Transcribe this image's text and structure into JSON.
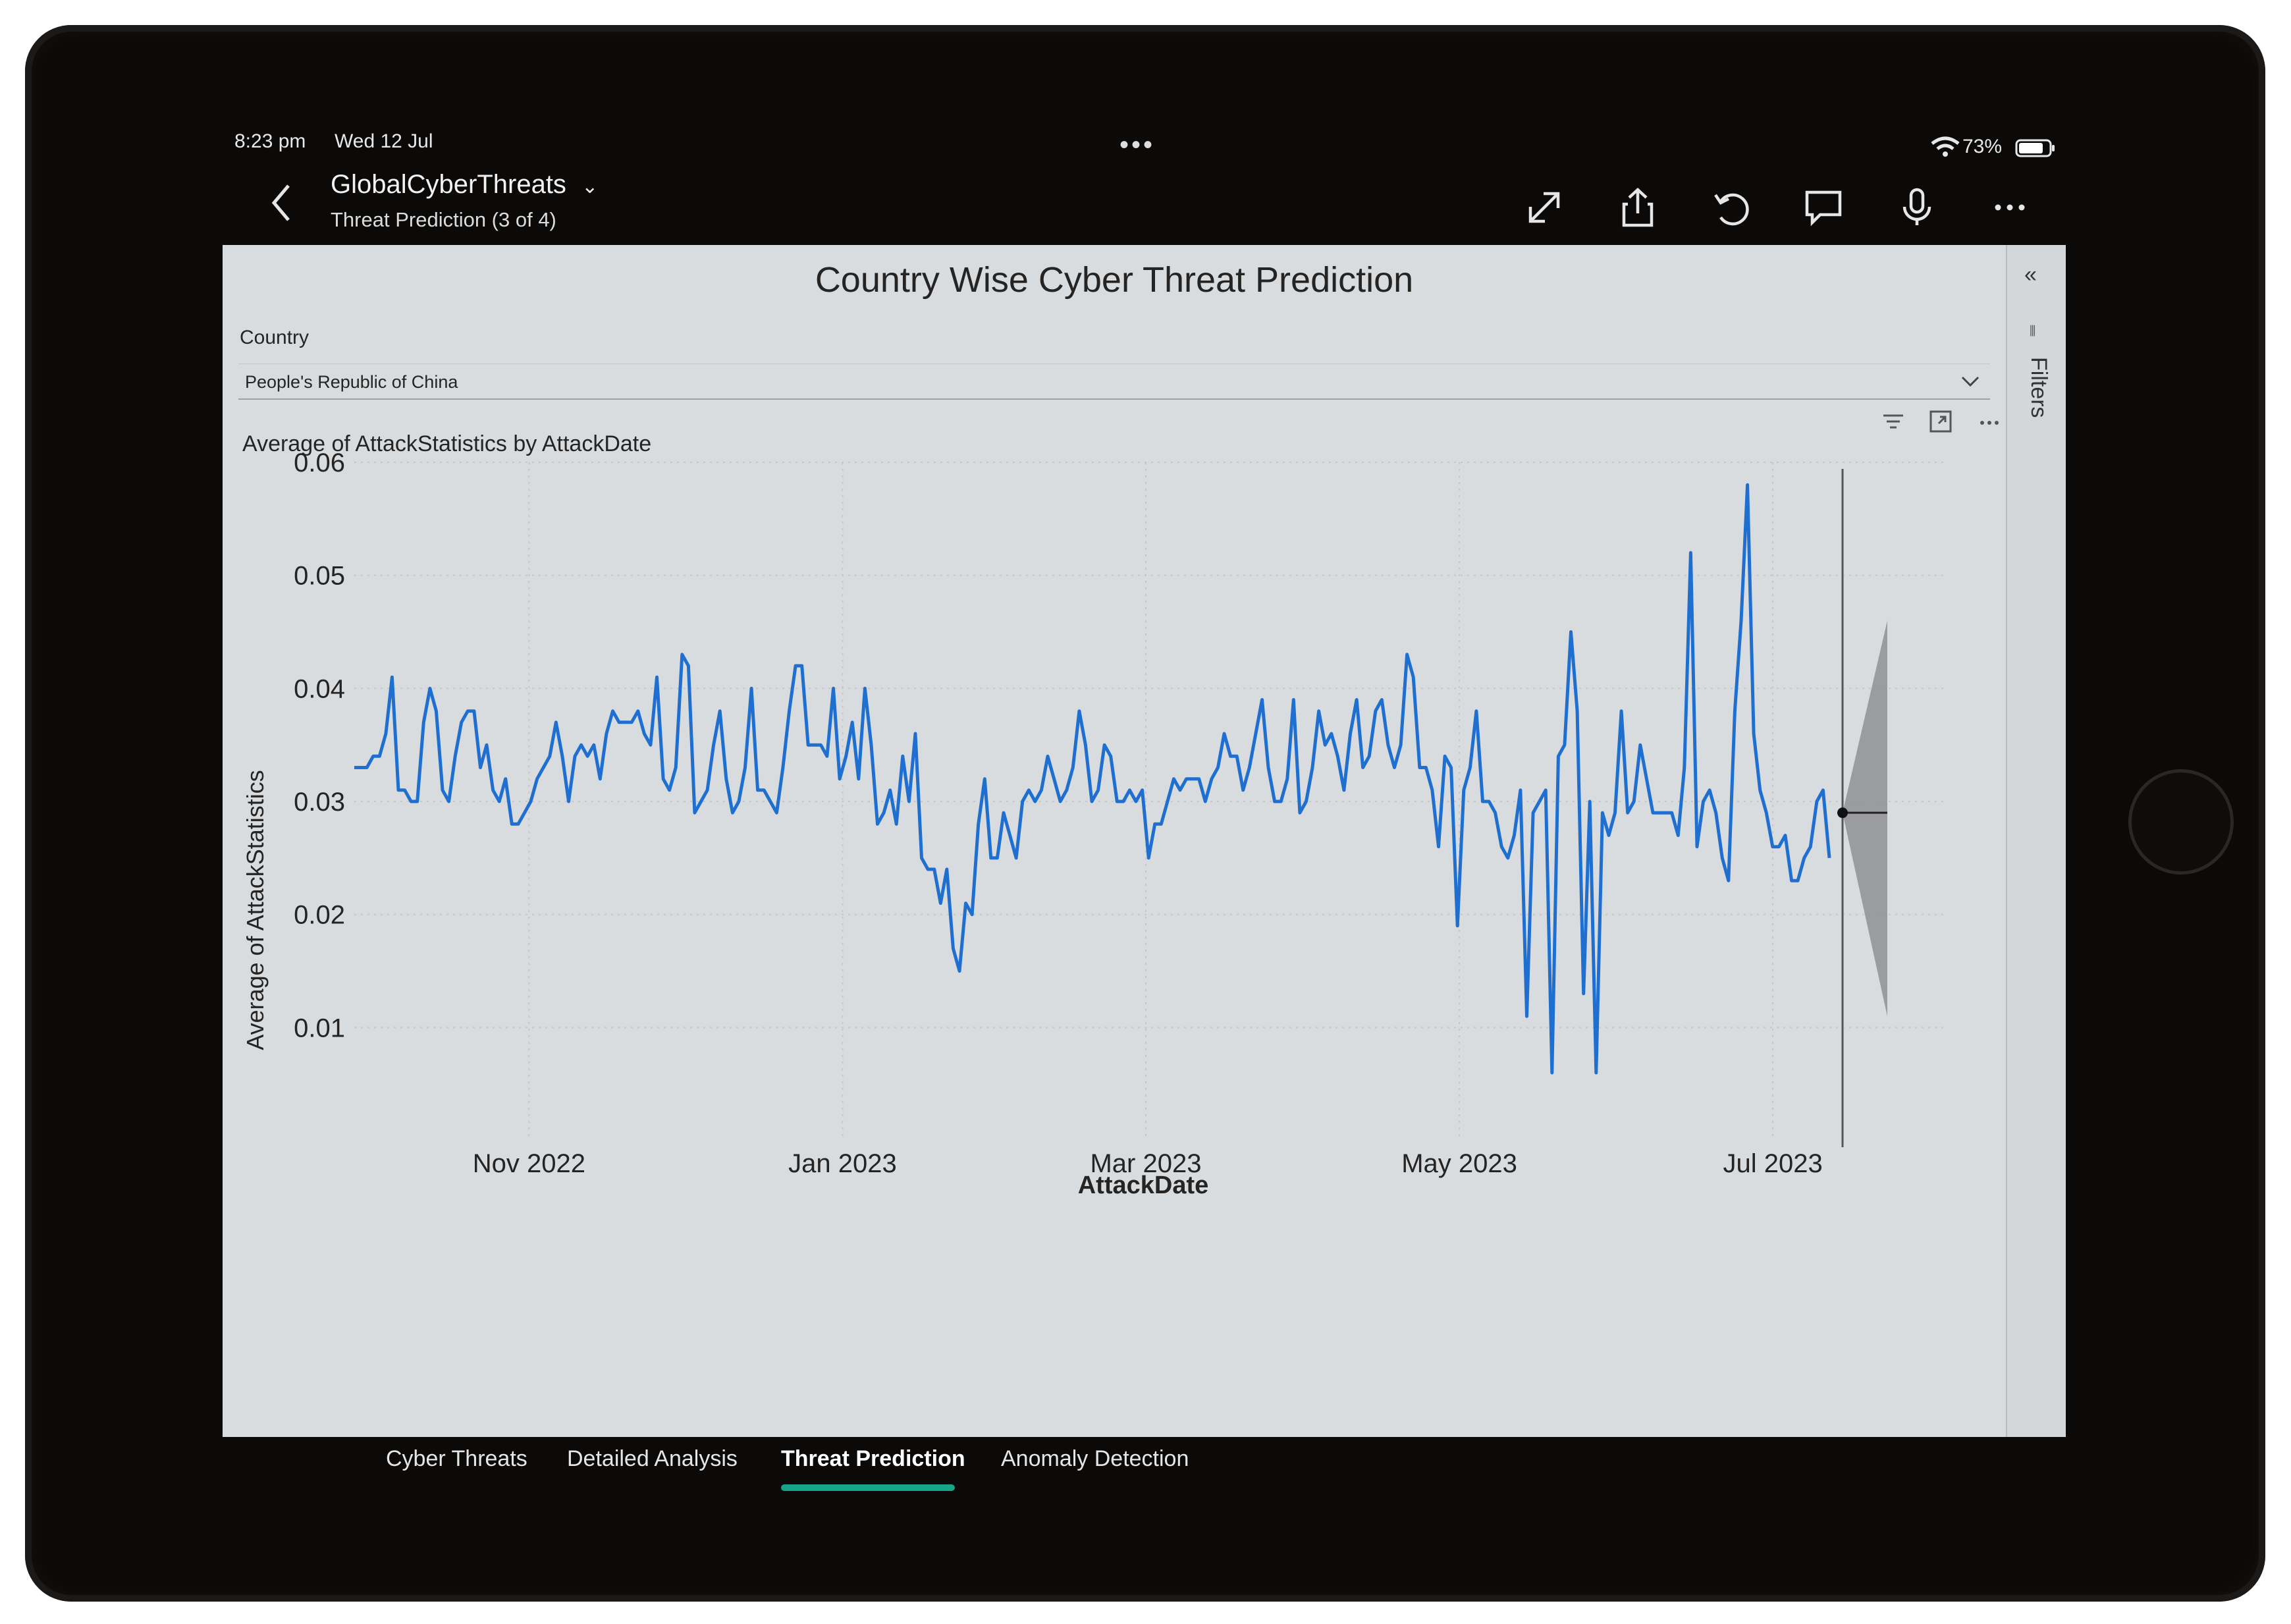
{
  "status_bar": {
    "time": "8:23 pm",
    "date": "Wed 12 Jul",
    "battery": "73%"
  },
  "header": {
    "title": "GlobalCyberThreats",
    "subtitle": "Threat Prediction (3 of 4)",
    "tools": [
      "expand-icon",
      "share-icon",
      "undo-icon",
      "comment-icon",
      "microphone-icon",
      "more-icon"
    ]
  },
  "report": {
    "title": "Country Wise Cyber Threat Prediction",
    "slicer": {
      "label": "Country",
      "value": "People's Republic of China"
    },
    "visual_title": "Average of AttackStatistics by AttackDate",
    "filters_label": "Filters"
  },
  "tabs": [
    {
      "label": "Cyber Threats",
      "active": false
    },
    {
      "label": "Detailed Analysis",
      "active": false
    },
    {
      "label": "Threat Prediction",
      "active": true
    },
    {
      "label": "Anomaly Detection",
      "active": false
    }
  ],
  "colors": {
    "line": "#1f6fd1",
    "forecast_band": "#8f9194",
    "accent": "#17a589"
  },
  "chart_data": {
    "type": "line",
    "title": "Average of AttackStatistics by AttackDate",
    "xlabel": "AttackDate",
    "ylabel": "Average of AttackStatistics",
    "ylim": [
      0.0,
      0.06
    ],
    "y_ticks": [
      "0.01",
      "0.02",
      "0.03",
      "0.04",
      "0.05",
      "0.06"
    ],
    "x_ticks": [
      "Nov 2022",
      "Jan 2023",
      "Mar 2023",
      "May 2023",
      "Jul 2023"
    ],
    "x_range": [
      "2022-09-28",
      "2023-07-12"
    ],
    "grid": true,
    "series": [
      {
        "values": [
          0.033,
          0.033,
          0.033,
          0.034,
          0.034,
          0.036,
          0.041,
          0.031,
          0.031,
          0.03,
          0.03,
          0.037,
          0.04,
          0.038,
          0.031,
          0.03,
          0.034,
          0.037,
          0.038,
          0.038,
          0.033,
          0.035,
          0.031,
          0.03,
          0.032,
          0.028,
          0.028,
          0.029,
          0.03,
          0.032,
          0.033,
          0.034,
          0.037,
          0.034,
          0.03,
          0.034,
          0.035,
          0.034,
          0.035,
          0.032,
          0.036,
          0.038,
          0.037,
          0.037,
          0.037,
          0.038,
          0.036,
          0.035,
          0.041,
          0.032,
          0.031,
          0.033,
          0.043,
          0.042,
          0.029,
          0.03,
          0.031,
          0.035,
          0.038,
          0.032,
          0.029,
          0.03,
          0.033,
          0.04,
          0.031,
          0.031,
          0.03,
          0.029,
          0.033,
          0.038,
          0.042,
          0.042,
          0.035,
          0.035,
          0.035,
          0.034,
          0.04,
          0.032,
          0.034,
          0.037,
          0.032,
          0.04,
          0.035,
          0.028,
          0.029,
          0.031,
          0.028,
          0.034,
          0.03,
          0.036,
          0.025,
          0.024,
          0.024,
          0.021,
          0.024,
          0.017,
          0.015,
          0.021,
          0.02,
          0.028,
          0.032,
          0.025,
          0.025,
          0.029,
          0.027,
          0.025,
          0.03,
          0.031,
          0.03,
          0.031,
          0.034,
          0.032,
          0.03,
          0.031,
          0.033,
          0.038,
          0.035,
          0.03,
          0.031,
          0.035,
          0.034,
          0.03,
          0.03,
          0.031,
          0.03,
          0.031,
          0.025,
          0.028,
          0.028,
          0.03,
          0.032,
          0.031,
          0.032,
          0.032,
          0.032,
          0.03,
          0.032,
          0.033,
          0.036,
          0.034,
          0.034,
          0.031,
          0.033,
          0.036,
          0.039,
          0.033,
          0.03,
          0.03,
          0.032,
          0.039,
          0.029,
          0.03,
          0.033,
          0.038,
          0.035,
          0.036,
          0.034,
          0.031,
          0.036,
          0.039,
          0.033,
          0.034,
          0.038,
          0.039,
          0.035,
          0.033,
          0.035,
          0.043,
          0.041,
          0.033,
          0.033,
          0.031,
          0.026,
          0.034,
          0.033,
          0.019,
          0.031,
          0.033,
          0.038,
          0.03,
          0.03,
          0.029,
          0.026,
          0.025,
          0.027,
          0.031,
          0.011,
          0.029,
          0.03,
          0.031,
          0.006,
          0.034,
          0.035,
          0.045,
          0.038,
          0.013,
          0.03,
          0.006,
          0.029,
          0.027,
          0.029,
          0.038,
          0.029,
          0.03,
          0.035,
          0.032,
          0.029,
          0.029,
          0.029,
          0.029,
          0.027,
          0.033,
          0.052,
          0.026,
          0.03,
          0.031,
          0.029,
          0.025,
          0.023,
          0.038,
          0.046,
          0.058,
          0.036,
          0.031,
          0.029,
          0.026,
          0.026,
          0.027,
          0.023,
          0.023,
          0.025,
          0.026,
          0.03,
          0.031,
          0.025
        ],
        "color": "#1f6fd1"
      }
    ],
    "forecast": {
      "value": 0.029,
      "upper": 0.046,
      "lower": 0.011
    }
  }
}
